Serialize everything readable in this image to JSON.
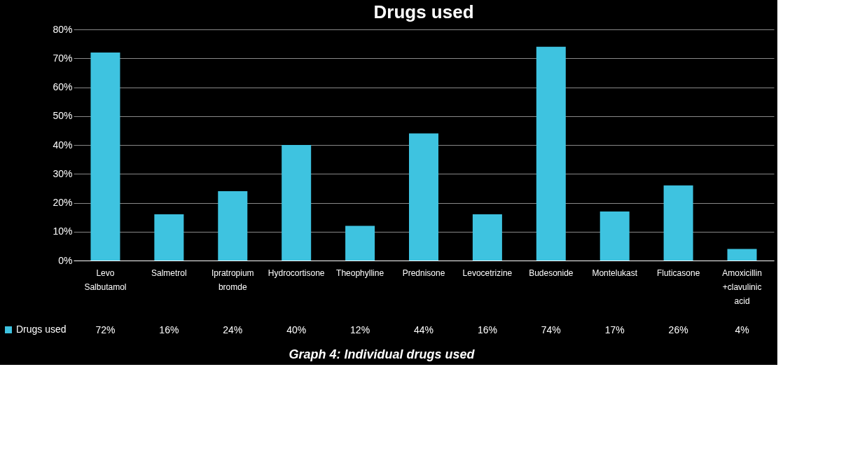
{
  "chart_data": {
    "type": "bar",
    "title": "Drugs used",
    "categories": [
      "Levo Salbutamol",
      "Salmetrol",
      "Ipratropium bromde",
      "Hydrocortisone",
      "Theophylline",
      "Prednisone",
      "Levocetrizine",
      "Budesonide",
      "Montelukast",
      "Fluticasone",
      "Amoxicillin +clavulinic acid"
    ],
    "series": [
      {
        "name": "Drugs used",
        "color": "#3ec3e0",
        "values": [
          72,
          16,
          24,
          40,
          12,
          44,
          16,
          74,
          17,
          26,
          4
        ],
        "value_labels": [
          "72%",
          "16%",
          "24%",
          "40%",
          "12%",
          "44%",
          "16%",
          "74%",
          "17%",
          "26%",
          "4%"
        ]
      }
    ],
    "ylim": [
      0,
      80
    ],
    "yticks": [
      {
        "value": 0,
        "label": "0%"
      },
      {
        "value": 10,
        "label": "10%"
      },
      {
        "value": 20,
        "label": "20%"
      },
      {
        "value": 30,
        "label": "30%"
      },
      {
        "value": 40,
        "label": "40%"
      },
      {
        "value": 50,
        "label": "50%"
      },
      {
        "value": 60,
        "label": "60%"
      },
      {
        "value": 70,
        "label": "70%"
      },
      {
        "value": 80,
        "label": "80%"
      }
    ],
    "grid": "y",
    "legend": "bottom",
    "annotations": [
      "Graph 4: Individual drugs used"
    ]
  }
}
